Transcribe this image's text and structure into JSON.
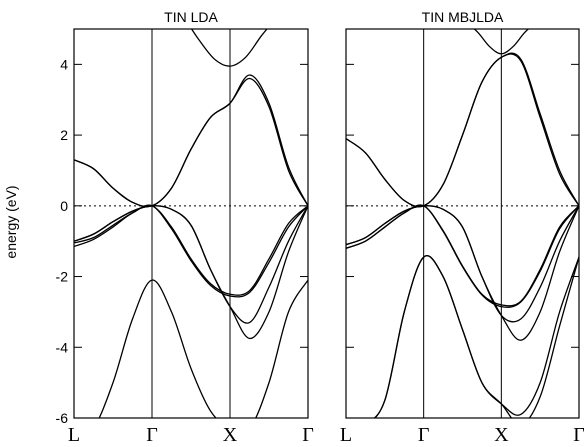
{
  "ylabel": "energy (eV)",
  "chart_data": [
    {
      "type": "line",
      "title": "TIN LDA",
      "ylabel": "energy (eV)",
      "ylim": [
        -6,
        5
      ],
      "yticks": [
        -6,
        -4,
        -2,
        0,
        2,
        4
      ],
      "x_range": [
        0,
        3
      ],
      "kpoints": [
        {
          "x": 0,
          "label": "L"
        },
        {
          "x": 1,
          "label": "Γ"
        },
        {
          "x": 2,
          "label": "X"
        },
        {
          "x": 3,
          "label": "Γ"
        }
      ],
      "fermi_level": 0,
      "series": [
        {
          "x": [
            0,
            0.25,
            0.5,
            0.75,
            1,
            1.25,
            1.5,
            1.75,
            2,
            2.25,
            2.5,
            2.75,
            3
          ],
          "y": [
            -6.7,
            -6.3,
            -5.0,
            -3.2,
            -2.1,
            -3.0,
            -4.6,
            -5.8,
            -6.3,
            -6.3,
            -5.0,
            -3.0,
            -2.1
          ]
        },
        {
          "x": [
            0,
            0.25,
            0.5,
            0.75,
            1,
            1.25,
            1.5,
            1.75,
            2,
            2.25,
            2.5,
            2.75,
            3
          ],
          "y": [
            -1.15,
            -0.95,
            -0.6,
            -0.2,
            0,
            -0.6,
            -1.5,
            -2.2,
            -2.5,
            -2.4,
            -1.5,
            -0.5,
            0
          ]
        },
        {
          "x": [
            0,
            0.25,
            0.5,
            0.75,
            1,
            1.25,
            1.5,
            1.75,
            2,
            2.25,
            2.5,
            2.75,
            3
          ],
          "y": [
            -1.05,
            -0.9,
            -0.55,
            -0.2,
            0,
            -0.65,
            -1.55,
            -2.25,
            -2.55,
            -2.45,
            -1.6,
            -0.6,
            0
          ]
        },
        {
          "x": [
            0,
            0.25,
            0.5,
            0.75,
            1,
            1.25,
            1.5,
            1.75,
            2,
            2.25,
            2.5,
            2.75,
            3
          ],
          "y": [
            -1.0,
            -0.8,
            -0.45,
            -0.15,
            0,
            -0.1,
            -0.55,
            -1.8,
            -2.85,
            -3.3,
            -2.3,
            -1.0,
            0
          ]
        },
        {
          "x": [
            0,
            0.25,
            0.5,
            0.75,
            1,
            1.25,
            1.5,
            1.75,
            2,
            2.25,
            2.5,
            2.75,
            3
          ],
          "y": [
            -1.0,
            -0.8,
            -0.45,
            -0.15,
            0,
            -0.1,
            -0.55,
            -1.8,
            -2.85,
            -3.75,
            -3.0,
            -1.3,
            0
          ]
        },
        {
          "x": [
            0,
            0.25,
            0.5,
            0.75,
            1,
            1.25,
            1.5,
            1.75,
            2,
            2.25,
            2.5,
            2.75,
            3
          ],
          "y": [
            1.3,
            1.05,
            0.5,
            0.1,
            0,
            0.5,
            1.6,
            2.5,
            2.9,
            3.6,
            2.8,
            1.0,
            0
          ]
        },
        {
          "x": [
            0,
            0.25,
            0.5,
            0.75,
            1,
            1.25,
            1.5,
            1.75,
            2,
            2.25,
            2.5,
            2.75,
            3
          ],
          "y": [
            1.3,
            1.05,
            0.5,
            0.1,
            0,
            0.5,
            1.6,
            2.5,
            2.9,
            3.7,
            2.9,
            1.1,
            0
          ]
        },
        {
          "x": [
            1.45,
            1.6,
            1.8,
            2,
            2.2,
            2.4,
            2.55
          ],
          "y": [
            5.2,
            4.7,
            4.15,
            3.95,
            4.2,
            4.8,
            5.2
          ]
        }
      ]
    },
    {
      "type": "line",
      "title": "TIN MBJLDA",
      "ylim": [
        -6,
        5
      ],
      "yticks": [
        -6,
        -4,
        -2,
        0,
        2,
        4
      ],
      "x_range": [
        0,
        3
      ],
      "kpoints": [
        {
          "x": 0,
          "label": "L"
        },
        {
          "x": 1,
          "label": "Γ"
        },
        {
          "x": 2,
          "label": "X"
        },
        {
          "x": 3,
          "label": "Γ"
        }
      ],
      "fermi_level": 0,
      "series": [
        {
          "x": [
            0,
            0.25,
            0.5,
            0.75,
            1,
            1.25,
            1.5,
            1.75,
            2,
            2.25,
            2.5,
            2.75,
            3
          ],
          "y": [
            -6.5,
            -6.2,
            -5.5,
            -3.0,
            -1.45,
            -2.0,
            -3.5,
            -5.0,
            -5.6,
            -5.9,
            -5.0,
            -3.0,
            -1.45
          ]
        },
        {
          "x": [
            0,
            0.25,
            0.5,
            0.75,
            1,
            1.25,
            1.5,
            1.75,
            2,
            2.25,
            2.5,
            2.75,
            3
          ],
          "y": [
            -6.5,
            -6.2,
            -5.5,
            -3.0,
            -1.45,
            -2.0,
            -3.5,
            -5.0,
            -5.6,
            -6.2,
            -5.4,
            -3.4,
            -1.45
          ]
        },
        {
          "x": [
            0,
            0.25,
            0.5,
            0.75,
            1,
            1.25,
            1.5,
            1.75,
            2,
            2.25,
            2.5,
            2.75,
            3
          ],
          "y": [
            -1.2,
            -1.0,
            -0.6,
            -0.2,
            0,
            -0.7,
            -1.7,
            -2.5,
            -2.8,
            -2.7,
            -1.8,
            -0.6,
            0
          ]
        },
        {
          "x": [
            0,
            0.25,
            0.5,
            0.75,
            1,
            1.25,
            1.5,
            1.75,
            2,
            2.25,
            2.5,
            2.75,
            3
          ],
          "y": [
            -1.2,
            -1.0,
            -0.6,
            -0.2,
            0,
            -0.72,
            -1.72,
            -2.52,
            -2.85,
            -2.72,
            -1.85,
            -0.65,
            0
          ]
        },
        {
          "x": [
            0,
            0.25,
            0.5,
            0.75,
            1,
            1.25,
            1.5,
            1.75,
            2,
            2.25,
            2.5,
            2.75,
            3
          ],
          "y": [
            -1.1,
            -0.9,
            -0.5,
            -0.15,
            0,
            -0.1,
            -0.6,
            -2.0,
            -3.1,
            -3.2,
            -2.3,
            -1.0,
            0
          ]
        },
        {
          "x": [
            0,
            0.25,
            0.5,
            0.75,
            1,
            1.25,
            1.5,
            1.75,
            2,
            2.25,
            2.5,
            2.75,
            3
          ],
          "y": [
            -1.1,
            -0.9,
            -0.5,
            -0.15,
            0,
            -0.1,
            -0.6,
            -2.0,
            -3.1,
            -3.8,
            -3.0,
            -1.3,
            0
          ]
        },
        {
          "x": [
            0,
            0.25,
            0.5,
            0.75,
            1,
            1.25,
            1.5,
            1.75,
            2,
            2.25,
            2.5,
            2.75,
            3
          ],
          "y": [
            1.9,
            1.5,
            0.75,
            0.15,
            0,
            0.6,
            2.0,
            3.5,
            4.2,
            4.1,
            2.5,
            0.9,
            0
          ]
        },
        {
          "x": [
            0,
            0.25,
            0.5,
            0.75,
            1,
            1.25,
            1.5,
            1.75,
            2,
            2.25,
            2.5,
            2.75,
            3
          ],
          "y": [
            1.9,
            1.5,
            0.75,
            0.15,
            0,
            0.6,
            2.0,
            3.5,
            4.2,
            4.15,
            2.6,
            1.0,
            0
          ]
        },
        {
          "x": [
            1.55,
            1.7,
            1.85,
            2,
            2.15,
            2.3,
            2.45
          ],
          "y": [
            5.2,
            4.9,
            4.5,
            4.3,
            4.5,
            4.9,
            5.2
          ]
        }
      ]
    }
  ]
}
